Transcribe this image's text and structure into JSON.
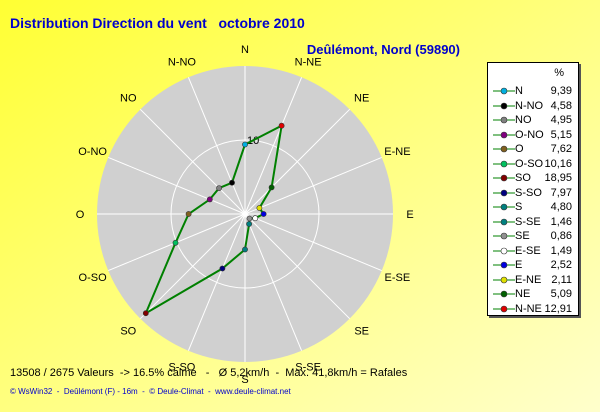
{
  "title": "Distribution Direction du vent   octobre 2010",
  "subtitle": "Deûlémont, Nord (59890)",
  "legend_header": "%",
  "summary": "13508 / 2675 Valeurs  -> 16.5% calme   -   Ø 5,2km/h  -  Max. 41,8km/h = Rafales",
  "credits": "© WsWin32  -  Deûlémont (F) - 16m  -  © Deule-Climat  -  www.deule-climat.net",
  "colors": {
    "background": "#ffff99",
    "plot": "#d0d0d0",
    "line": "#008000",
    "text": "#0000cc"
  },
  "chart_data": {
    "type": "radar",
    "title": "Distribution Direction du vent   octobre 2010",
    "directions": [
      "N",
      "N-NE",
      "NE",
      "E-NE",
      "E",
      "E-SE",
      "SE",
      "S-SE",
      "S",
      "S-SO",
      "SO",
      "O-SO",
      "O",
      "O-NO",
      "NO",
      "N-NO"
    ],
    "values": [
      9.39,
      12.91,
      5.09,
      2.11,
      2.52,
      1.49,
      0.86,
      1.46,
      4.8,
      7.97,
      18.95,
      10.16,
      7.62,
      5.15,
      4.95,
      4.58
    ],
    "ring_label": "10",
    "scale_max": 20,
    "unit": "%",
    "legend": [
      {
        "label": "N",
        "value": "9,39",
        "color": "#00b0e0"
      },
      {
        "label": "N-NO",
        "value": "4,58",
        "color": "#000000"
      },
      {
        "label": "NO",
        "value": "4,95",
        "color": "#808080"
      },
      {
        "label": "O-NO",
        "value": "5,15",
        "color": "#800080"
      },
      {
        "label": "O",
        "value": "7,62",
        "color": "#806020"
      },
      {
        "label": "O-SO",
        "value": "10,16",
        "color": "#00c060"
      },
      {
        "label": "SO",
        "value": "18,95",
        "color": "#800000"
      },
      {
        "label": "S-SO",
        "value": "7,97",
        "color": "#000080"
      },
      {
        "label": "S",
        "value": "4,80",
        "color": "#008080"
      },
      {
        "label": "S-SE",
        "value": "1,46",
        "color": "#008080"
      },
      {
        "label": "SE",
        "value": "0,86",
        "color": "#909090"
      },
      {
        "label": "E-SE",
        "value": "1,49",
        "color": "#ffffff"
      },
      {
        "label": "E",
        "value": "2,52",
        "color": "#0000e0"
      },
      {
        "label": "E-NE",
        "value": "2,11",
        "color": "#e0e000"
      },
      {
        "label": "NE",
        "value": "5,09",
        "color": "#006000"
      },
      {
        "label": "N-NE",
        "value": "12,91",
        "color": "#e00000"
      }
    ]
  }
}
